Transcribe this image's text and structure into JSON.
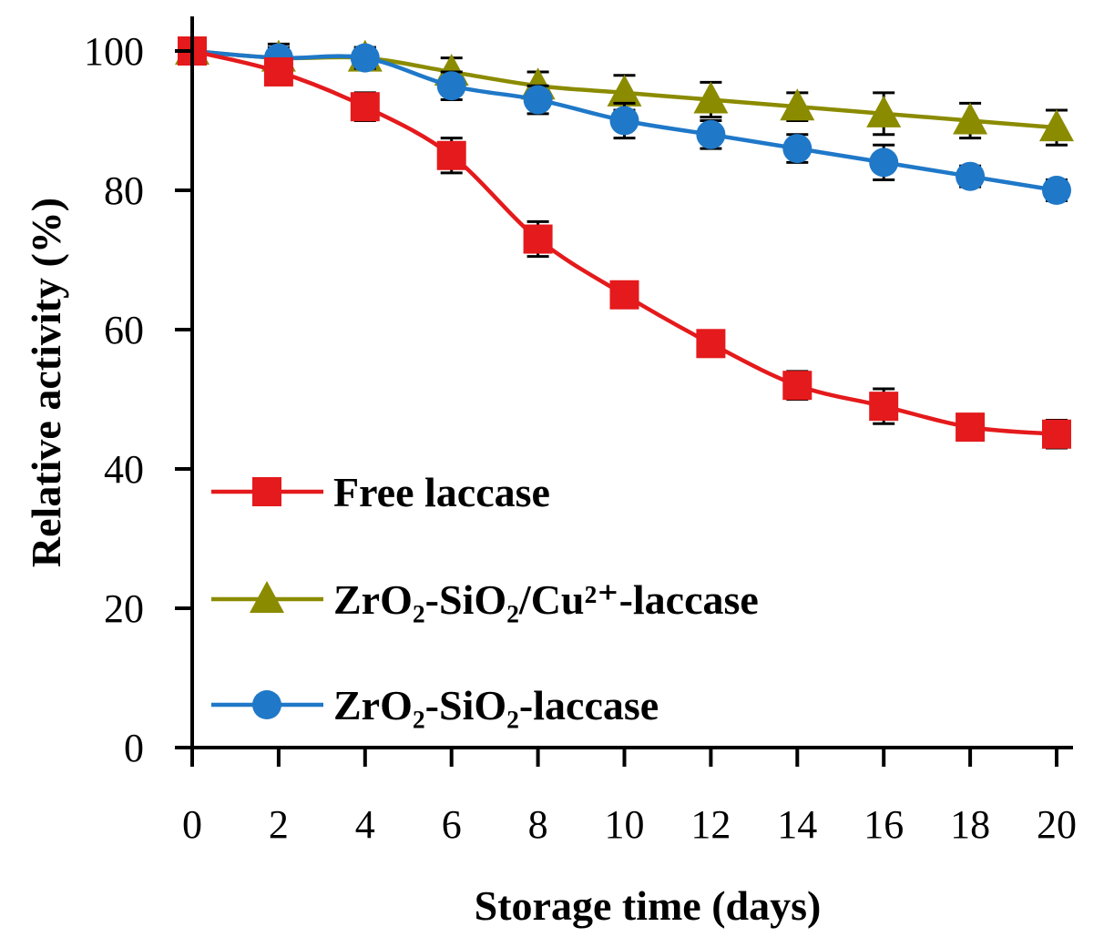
{
  "chart_data": {
    "type": "line",
    "title": "",
    "xlabel": "Storage time (days)",
    "ylabel": "Relative activity (%)",
    "xlim": [
      0,
      20
    ],
    "ylim": [
      0,
      100
    ],
    "x_ticks": [
      0,
      2,
      4,
      6,
      8,
      10,
      12,
      14,
      16,
      18,
      20
    ],
    "y_ticks": [
      0,
      20,
      40,
      60,
      80,
      100
    ],
    "grid": false,
    "legend_position": "bottom-left",
    "x": [
      0,
      2,
      4,
      6,
      8,
      10,
      12,
      14,
      16,
      18,
      20
    ],
    "series": [
      {
        "name": "Free laccase",
        "marker": "square",
        "color": "#e41a1c",
        "values": [
          100,
          97,
          92,
          85,
          73,
          65,
          58,
          52,
          49,
          46,
          45
        ],
        "errors": [
          1.5,
          1.5,
          2,
          2.5,
          2.5,
          1.5,
          1.5,
          2,
          2.5,
          1.5,
          2
        ]
      },
      {
        "name": "ZrO₂-SiO₂/Cu²⁺-laccase",
        "marker": "triangle",
        "color": "#8b8b00",
        "values": [
          100,
          99,
          99,
          97,
          95,
          94,
          93,
          92,
          91,
          90,
          89
        ],
        "errors": [
          1,
          2,
          1.5,
          2,
          2,
          2.5,
          2.5,
          2,
          3,
          2.5,
          2.5
        ]
      },
      {
        "name": "ZrO₂-SiO₂-laccase",
        "marker": "circle",
        "color": "#1f78c8",
        "values": [
          100,
          99,
          99,
          95,
          93,
          90,
          88,
          86,
          84,
          82,
          80
        ],
        "errors": [
          1,
          1.5,
          1.5,
          2,
          2,
          2.5,
          2,
          2,
          2.5,
          1.5,
          1.5
        ]
      }
    ]
  }
}
